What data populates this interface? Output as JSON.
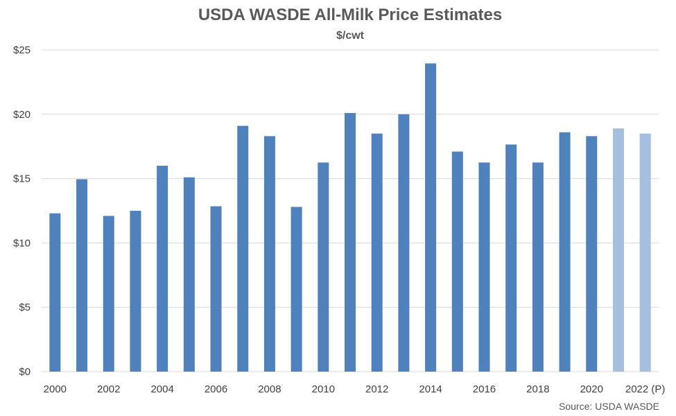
{
  "chart_data": {
    "type": "bar",
    "title": "USDA WASDE All-Milk Price Estimates",
    "subtitle": "$/cwt",
    "source": "Source: USDA WASDE",
    "categories": [
      "2000",
      "2001",
      "2002",
      "2003",
      "2004",
      "2005",
      "2006",
      "2007",
      "2008",
      "2009",
      "2010",
      "2011",
      "2012",
      "2013",
      "2014",
      "2015",
      "2016",
      "2017",
      "2018",
      "2019",
      "2020",
      "2021",
      "2022 (P)"
    ],
    "x_tick_labels": [
      "2000",
      "",
      "2002",
      "",
      "2004",
      "",
      "2006",
      "",
      "2008",
      "",
      "2010",
      "",
      "2012",
      "",
      "2014",
      "",
      "2016",
      "",
      "2018",
      "",
      "2020",
      "",
      "2022 (P)"
    ],
    "values": [
      12.3,
      14.95,
      12.1,
      12.5,
      16.0,
      15.1,
      12.85,
      19.1,
      18.3,
      12.8,
      16.25,
      20.1,
      18.5,
      20.0,
      23.95,
      17.1,
      16.25,
      17.65,
      16.25,
      18.6,
      18.3,
      18.9,
      18.5
    ],
    "projected": [
      false,
      false,
      false,
      false,
      false,
      false,
      false,
      false,
      false,
      false,
      false,
      false,
      false,
      false,
      false,
      false,
      false,
      false,
      false,
      false,
      false,
      true,
      true
    ],
    "ylim": [
      0,
      25
    ],
    "y_ticks": [
      0,
      5,
      10,
      15,
      20,
      25
    ],
    "y_tick_labels": [
      "$0",
      "$5",
      "$10",
      "$15",
      "$20",
      "$25"
    ],
    "grid": true,
    "legend": "none",
    "colors": {
      "bar": "#4f81bd",
      "projected_bar": "#a6bfdf",
      "grid": "#d9d9d9",
      "text": "#595959"
    }
  }
}
